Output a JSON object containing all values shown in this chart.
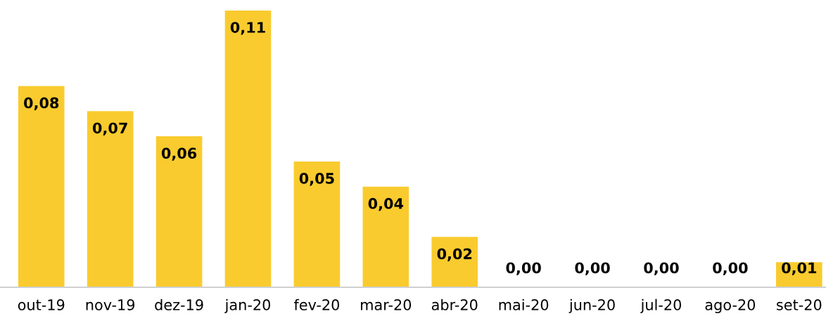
{
  "chart_data": {
    "type": "bar",
    "categories": [
      "out-19",
      "nov-19",
      "dez-19",
      "jan-20",
      "fev-20",
      "mar-20",
      "abr-20",
      "mai-20",
      "jun-20",
      "jul-20",
      "ago-20",
      "set-20"
    ],
    "values": [
      0.08,
      0.07,
      0.06,
      0.11,
      0.05,
      0.04,
      0.02,
      0,
      0,
      0,
      0,
      0.01
    ],
    "value_labels": [
      "0,08",
      "0,07",
      "0,06",
      "0,11",
      "0,05",
      "0,04",
      "0,02",
      "0,00",
      "0,00",
      "0,00",
      "0,00",
      "0,01"
    ],
    "color": "#f9cb2e"
  }
}
